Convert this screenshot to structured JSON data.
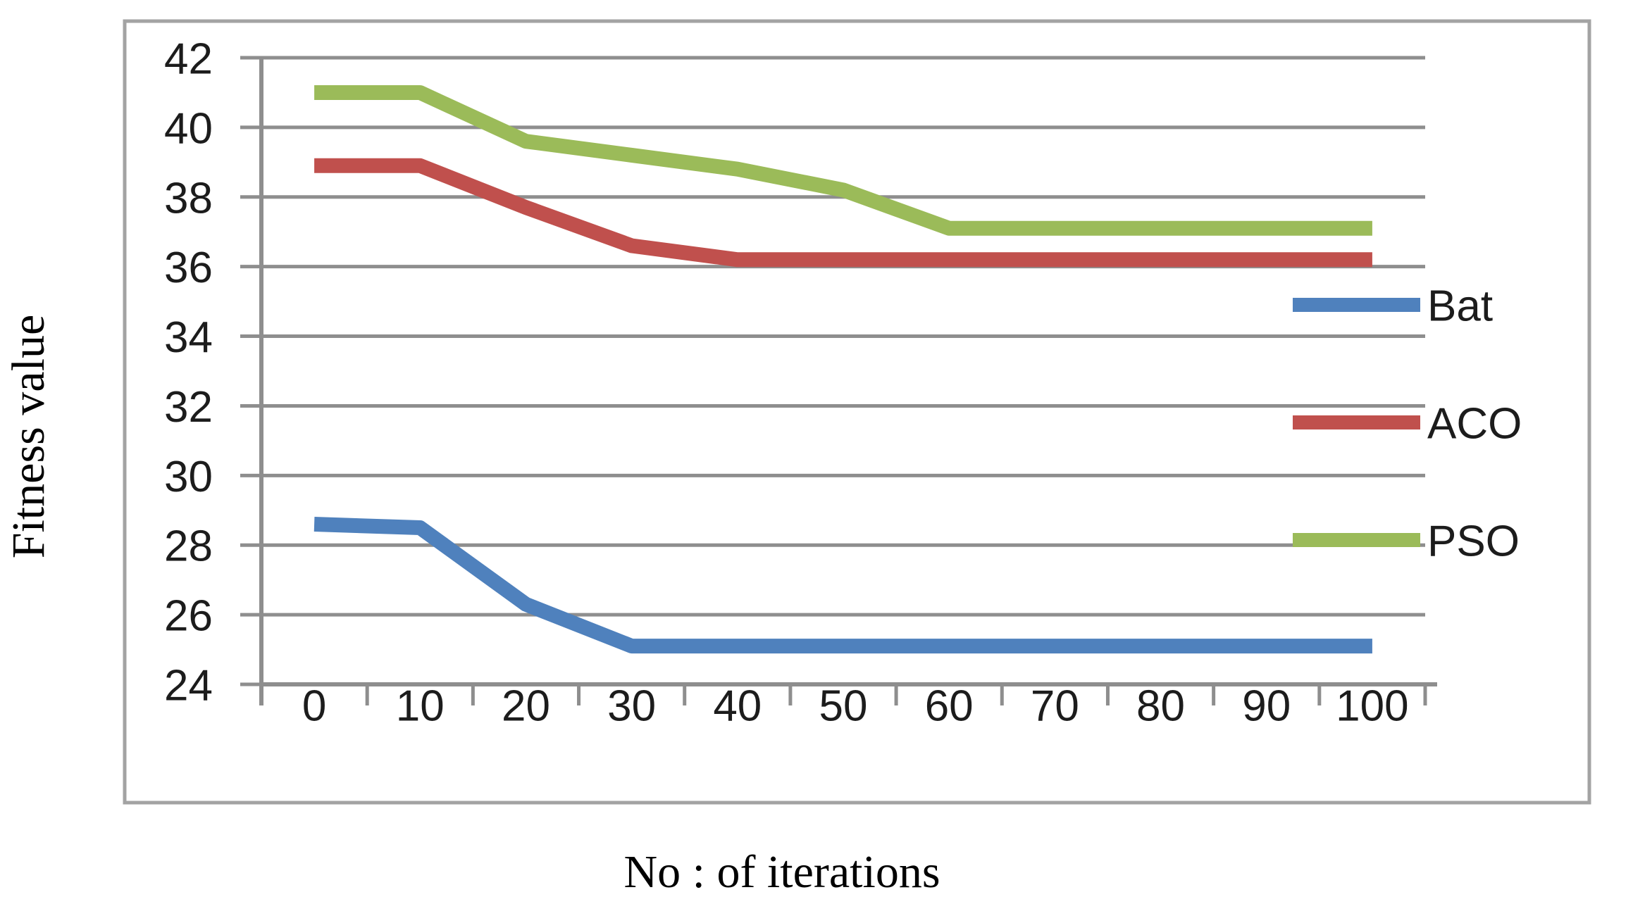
{
  "figure": {
    "background": "#ffffff"
  },
  "chart_data": {
    "type": "line",
    "title": "",
    "xlabel": "No : of iterations",
    "ylabel": "Fitness value",
    "categories": [
      0,
      10,
      20,
      30,
      40,
      50,
      60,
      70,
      80,
      90,
      100
    ],
    "x_tick_labels": [
      "0",
      "10",
      "20",
      "30",
      "40",
      "50",
      "60",
      "70",
      "80",
      "90",
      "100"
    ],
    "y_ticks": [
      24,
      26,
      28,
      30,
      32,
      34,
      36,
      38,
      40,
      42
    ],
    "ylim": [
      24,
      42
    ],
    "grid": true,
    "legend_position": "inside-right",
    "series": [
      {
        "name": "Bat",
        "color": "#4f81bd",
        "values": [
          28.6,
          28.5,
          26.3,
          25.1,
          25.1,
          25.1,
          25.1,
          25.1,
          25.1,
          25.1,
          25.1
        ]
      },
      {
        "name": "ACO",
        "color": "#c0504d",
        "values": [
          38.9,
          38.9,
          37.7,
          36.6,
          36.2,
          36.2,
          36.2,
          36.2,
          36.2,
          36.2,
          36.2
        ]
      },
      {
        "name": "PSO",
        "color": "#9bbb59",
        "values": [
          41.0,
          41.0,
          39.6,
          39.2,
          38.8,
          38.2,
          37.1,
          37.1,
          37.1,
          37.1,
          37.1
        ]
      }
    ],
    "gridline_color": "#8e8e8e",
    "border_color": "#a3a3a3",
    "text_color": "#1c1c1c"
  }
}
